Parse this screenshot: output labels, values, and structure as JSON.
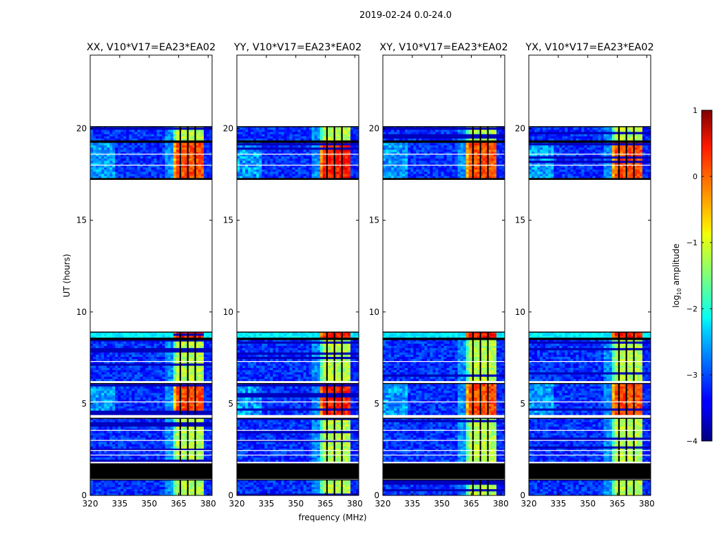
{
  "figure": {
    "title": "2019-02-24 0.0-24.0",
    "xlabel": "frequency (MHz)",
    "ylabel": "UT (hours)"
  },
  "chart_data": [
    {
      "type": "heatmap",
      "title": "XX, V10*V17=EA23*EA02",
      "xlim": [
        320,
        382
      ],
      "ylim": [
        0,
        24
      ],
      "xticks": [
        320,
        335,
        350,
        365,
        380
      ],
      "yticks": [
        0,
        5,
        10,
        15,
        20
      ],
      "band_strength": [
        2.5,
        2.6,
        2.0,
        2.4
      ],
      "low_freq_strength": 1.0
    },
    {
      "type": "heatmap",
      "title": "YY, V10*V17=EA23*EA02",
      "xlim": [
        320,
        382
      ],
      "ylim": [
        0,
        24
      ],
      "xticks": [
        320,
        335,
        350,
        365,
        380
      ],
      "yticks": [
        0,
        5,
        10,
        15,
        20
      ],
      "band_strength": [
        2.7,
        2.8,
        2.0,
        2.6
      ],
      "low_freq_strength": 1.3
    },
    {
      "type": "heatmap",
      "title": "XY, V10*V17=EA23*EA02",
      "xlim": [
        320,
        382
      ],
      "ylim": [
        0,
        24
      ],
      "xticks": [
        320,
        335,
        350,
        365,
        380
      ],
      "yticks": [
        0,
        5,
        10,
        15,
        20
      ],
      "band_strength": [
        2.6,
        2.5,
        2.0,
        2.3
      ],
      "low_freq_strength": 1.1
    },
    {
      "type": "heatmap",
      "title": "YX, V10*V17=EA23*EA02",
      "xlim": [
        320,
        382
      ],
      "ylim": [
        0,
        24
      ],
      "xticks": [
        320,
        335,
        350,
        365,
        380
      ],
      "yticks": [
        0,
        5,
        10,
        15,
        20
      ],
      "band_strength": [
        2.6,
        2.5,
        2.0,
        2.3
      ],
      "low_freq_strength": 1.0
    }
  ],
  "data_segments_ut": [
    {
      "start": 0.0,
      "end": 0.85,
      "level": 0
    },
    {
      "start": 1.85,
      "end": 4.2,
      "level": 0
    },
    {
      "start": 4.4,
      "end": 6.1,
      "level": 1
    },
    {
      "start": 6.25,
      "end": 8.5,
      "level": 0
    },
    {
      "start": 8.6,
      "end": 8.9,
      "level": 2
    },
    {
      "start": 17.3,
      "end": 19.25,
      "level": 1
    },
    {
      "start": 19.35,
      "end": 20.1,
      "level": 0
    }
  ],
  "black_gaps_ut": [
    {
      "start": 0.9,
      "end": 1.75
    },
    {
      "start": 8.5,
      "end": 8.6
    },
    {
      "start": 19.25,
      "end": 19.35
    },
    {
      "start": 17.2,
      "end": 17.3
    }
  ],
  "band_freq_range_mhz": [
    362,
    377.5
  ],
  "band_gap_freqs_mhz": [
    365.8,
    369.6,
    373.4
  ],
  "colorbar": {
    "label": "log",
    "label_sub": "10",
    "label_tail": " amplitude",
    "min": -4,
    "max": 1,
    "ticks": [
      1,
      0,
      -1,
      -2,
      -3,
      -4
    ],
    "tick_labels": [
      "1",
      "0",
      "−1",
      "−2",
      "−3",
      "−4"
    ],
    "colormap": "jet"
  }
}
